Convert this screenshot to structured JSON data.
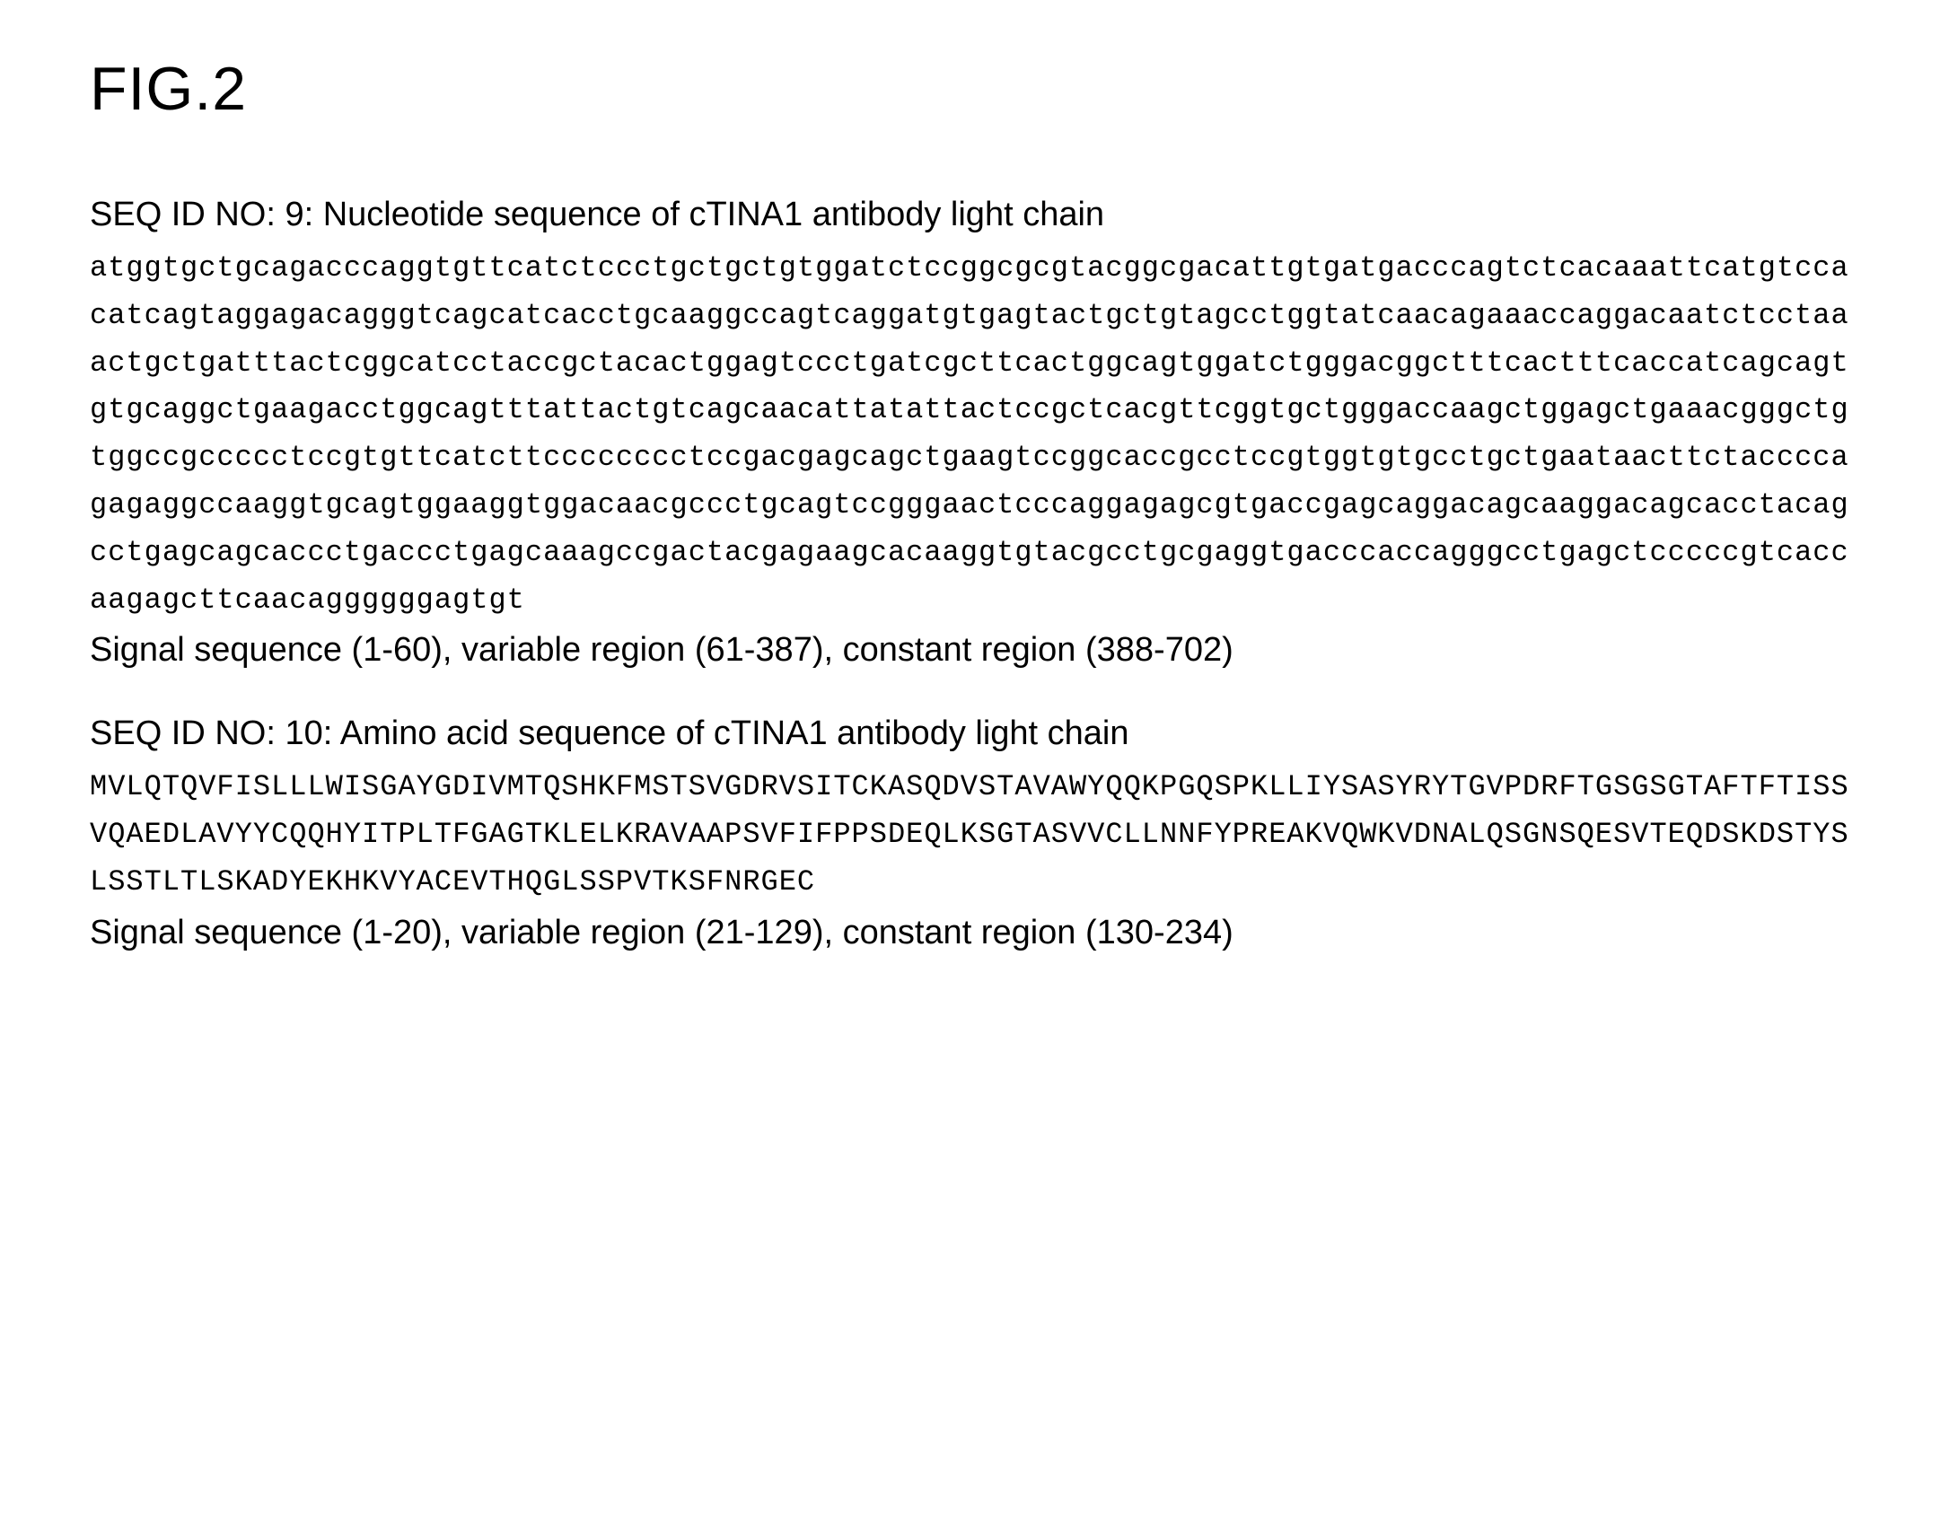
{
  "figure_title": "FIG.2",
  "seq1": {
    "heading": "SEQ ID NO: 9: Nucleotide sequence of cTINA1 antibody light chain",
    "sequence": "atggtgctgcagacccaggtgttcatctccctgctgctgtggatctccggcgcgtacggcgacattgtgatgacccagtctcacaaattcatgtccacatcagtaggagacagggtcagcatcacctgcaaggccagtcaggatgtgagtactgctgtagcctggtatcaacagaaaccaggacaatctcctaaactgctgatttactcggcatcctaccgctacactggagtccctgatcgcttcactggcagtggatctgggacggctttcactttcaccatcagcagtgtgcaggctgaagacctggcagtttattactgtcagcaacattatattactccgctcacgttcggtgctgggaccaagctggagctgaaacgggctgtggccgccccctccgtgttcatcttcccccccctccgacgagcagctgaagtccggcaccgcctccgtggtgtgcctgctgaataacttctaccccagagaggccaaggtgcagtggaaggtggacaacgccctgcagtccgggaactcccaggagagcgtgaccgagcaggacagcaaggacagcacctacagcctgagcagcaccctgaccctgagcaaagccgactacgagaagcacaaggtgtacgcctgcgaggtgacccaccagggcctgagctcccccgtcaccaagagcttcaacaggggggagtgt",
    "region_note": "Signal sequence (1-60), variable region (61-387), constant region (388-702)"
  },
  "seq2": {
    "heading": "SEQ ID NO: 10: Amino acid sequence of cTINA1 antibody light chain",
    "sequence": "MVLQTQVFISLLLWISGAYGDIVMTQSHKFMSTSVGDRVSITCKASQDVSTAVAWYQQKPGQSPKLLIYSASYRYTGVPDRFTGSGSGTAFTFTISSVQAEDLAVYYCQQHYITPLTFGAGTKLELKRAVAAPSVFIFPPSDEQLKSGTASVVCLLNNFYPREAKVQWKVDNALQSGNSQESVTEQDSKDSTYSLSSTLTLSKADYEKHKVYACEVTHQGLSSPVTKSFNRGEC",
    "region_note": "Signal sequence (1-20), variable region (21-129), constant region (130-234)"
  },
  "style": {
    "bg_color": "#ffffff",
    "text_color": "#000000",
    "title_fontsize": 68,
    "heading_fontsize": 38,
    "mono_fontsize": 32,
    "note_fontsize": 38
  }
}
